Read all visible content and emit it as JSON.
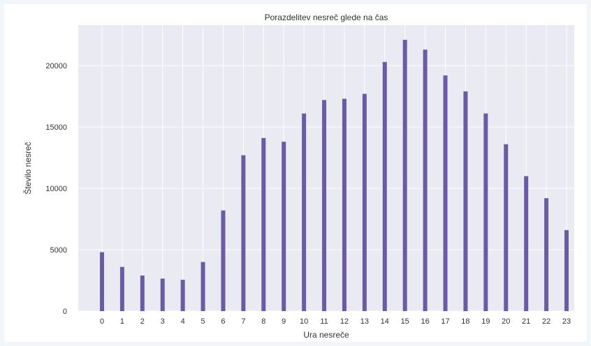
{
  "chart_data": {
    "type": "bar",
    "title": "Porazdelitev nesreč glede na čas",
    "xlabel": "Ura nesreče",
    "ylabel": "Število nesreč",
    "categories": [
      "0",
      "1",
      "2",
      "3",
      "4",
      "5",
      "6",
      "7",
      "8",
      "9",
      "10",
      "11",
      "12",
      "13",
      "14",
      "15",
      "16",
      "17",
      "18",
      "19",
      "20",
      "21",
      "22",
      "23"
    ],
    "values": [
      4800,
      3600,
      2900,
      2650,
      2550,
      4000,
      8200,
      12700,
      14100,
      13800,
      16100,
      17200,
      17300,
      17700,
      20300,
      22100,
      21300,
      19200,
      17900,
      16100,
      13600,
      11000,
      9200,
      6600
    ],
    "ylim": [
      0,
      23300
    ],
    "yticks": [
      0,
      5000,
      10000,
      15000,
      20000
    ],
    "grid": true,
    "colors": {
      "bar": "#6b5ba5",
      "plot_bg": "#eaeaf2",
      "grid": "#ffffff"
    }
  }
}
